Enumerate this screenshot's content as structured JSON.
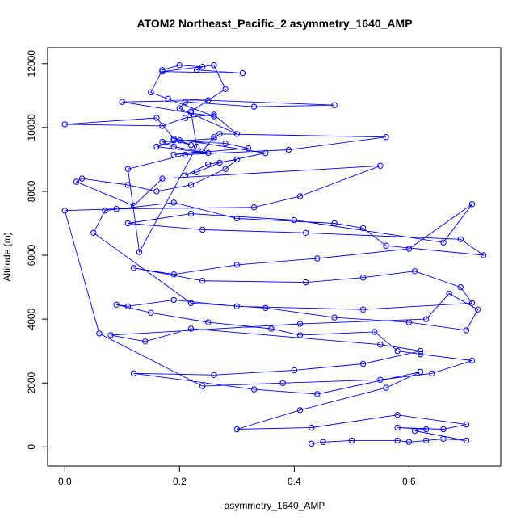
{
  "chart_data": {
    "type": "scatter",
    "mode": "lines+points",
    "title": "ATOM2 Northeast_Pacific_2 asymmetry_1640_AMP",
    "xlabel": "asymmetry_1640_AMP",
    "ylabel": "Altitude (m)",
    "xlim": [
      -0.03,
      0.76
    ],
    "ylim": [
      -600,
      12500
    ],
    "x_ticks": [
      0.0,
      0.2,
      0.4,
      0.6
    ],
    "x_tick_labels": [
      "0.0",
      "0.2",
      "0.4",
      "0.6"
    ],
    "y_ticks": [
      0,
      2000,
      4000,
      6000,
      8000,
      10000,
      12000
    ],
    "y_tick_labels": [
      "0",
      "2000",
      "4000",
      "6000",
      "8000",
      "10000",
      "12000"
    ],
    "grid": false,
    "legend": "none",
    "color": "#0000ff",
    "series": [
      {
        "x": [
          0.43,
          0.45,
          0.5,
          0.58,
          0.6,
          0.63,
          0.66,
          0.7,
          0.61,
          0.63,
          0.58,
          0.66,
          0.7,
          0.58,
          0.43,
          0.3,
          0.41,
          0.56,
          0.62,
          0.44,
          0.33,
          0.12,
          0.26,
          0.4,
          0.52,
          0.62,
          0.55,
          0.22,
          0.14,
          0.08,
          0.41,
          0.63,
          0.67,
          0.72,
          0.7,
          0.6,
          0.47,
          0.35,
          0.22,
          0.05,
          0.07,
          0.19,
          0.3,
          0.47,
          0.52,
          0.56,
          0.73,
          0.69,
          0.42,
          0.24,
          0.11,
          0.22,
          0.4,
          0.66,
          0.71,
          0.6,
          0.44,
          0.3,
          0.19,
          0.12,
          0.24,
          0.42,
          0.52,
          0.61,
          0.69,
          0.71,
          0.52,
          0.3,
          0.19,
          0.11,
          0.09,
          0.15,
          0.25,
          0.36,
          0.41,
          0.54,
          0.58,
          0.62,
          0.71,
          0.64,
          0.55,
          0.38,
          0.24,
          0.06,
          0.0,
          0.09,
          0.33,
          0.41,
          0.55,
          0.17,
          0.12,
          0.02,
          0.03,
          0.11,
          0.16,
          0.22,
          0.28,
          0.3,
          0.25,
          0.21,
          0.23,
          0.27,
          0.35,
          0.19,
          0.16,
          0.0,
          0.17,
          0.21,
          0.26,
          0.3,
          0.2,
          0.21,
          0.33,
          0.47,
          0.18,
          0.25,
          0.1,
          0.22,
          0.26,
          0.15,
          0.17,
          0.2,
          0.24,
          0.23,
          0.31,
          0.17,
          0.26,
          0.28,
          0.22,
          0.23,
          0.13,
          0.11,
          0.21,
          0.39,
          0.56,
          0.27,
          0.26,
          0.17,
          0.19,
          0.25,
          0.16,
          0.2,
          0.22,
          0.19,
          0.28,
          0.32,
          0.19,
          0.24,
          0.26
        ],
        "y": [
          100,
          150,
          200,
          200,
          150,
          200,
          250,
          200,
          500,
          550,
          600,
          550,
          700,
          1000,
          600,
          550,
          1150,
          1850,
          2350,
          1650,
          1800,
          2300,
          2250,
          2400,
          2600,
          3000,
          3200,
          3700,
          3300,
          3500,
          3850,
          4000,
          4800,
          4300,
          3650,
          3900,
          4050,
          4350,
          4500,
          6700,
          7400,
          7650,
          7150,
          7000,
          6850,
          6300,
          6000,
          6500,
          6700,
          6800,
          7000,
          7300,
          7100,
          6400,
          7600,
          6200,
          5900,
          5700,
          5400,
          5600,
          5200,
          5150,
          5300,
          5500,
          5000,
          4500,
          4300,
          4400,
          4600,
          4400,
          4450,
          4200,
          3900,
          3700,
          3500,
          3600,
          3000,
          2900,
          2700,
          2300,
          2100,
          2000,
          1900,
          3550,
          7400,
          7450,
          7500,
          7850,
          8800,
          8400,
          7550,
          8300,
          8400,
          8200,
          8000,
          8200,
          8700,
          9000,
          8850,
          8500,
          8600,
          8900,
          9200,
          9650,
          10300,
          10100,
          10050,
          10300,
          10400,
          9800,
          10600,
          10800,
          10650,
          10700,
          10900,
          10850,
          10800,
          10450,
          10350,
          11100,
          11800,
          11950,
          11900,
          11800,
          11700,
          11750,
          11950,
          11200,
          10500,
          9400,
          6100,
          8700,
          9150,
          9300,
          9700,
          9800,
          9650,
          9550,
          9400,
          9200,
          9400,
          9600,
          9450,
          9600,
          9500,
          9350,
          9150,
          9250,
          9700
        ]
      }
    ]
  }
}
